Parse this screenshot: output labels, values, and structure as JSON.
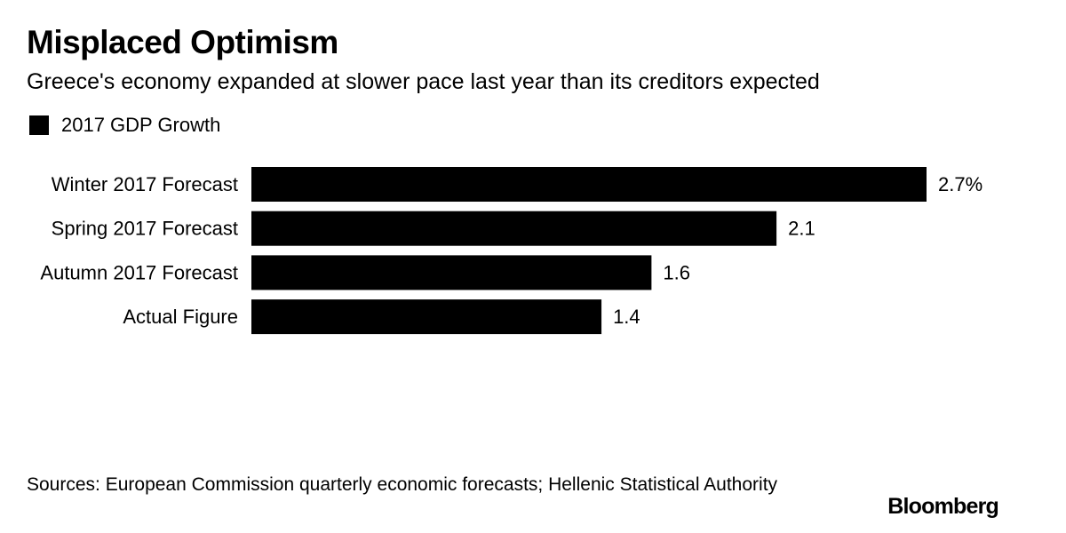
{
  "header": {
    "title": "Misplaced Optimism",
    "subtitle": "Greece's economy expanded at slower pace last year than its creditors expected"
  },
  "legend": {
    "label": "2017 GDP Growth",
    "color": "#000000"
  },
  "chart_data": {
    "type": "bar",
    "orientation": "horizontal",
    "title": "Misplaced Optimism",
    "subtitle": "Greece's economy expanded at slower pace last year than its creditors expected",
    "categories": [
      "Winter 2017 Forecast",
      "Spring 2017 Forecast",
      "Autumn 2017 Forecast",
      "Actual Figure"
    ],
    "series": [
      {
        "name": "2017 GDP Growth",
        "values": [
          2.7,
          2.1,
          1.6,
          1.4
        ],
        "value_labels": [
          "2.7%",
          "2.1",
          "1.6",
          "1.4"
        ],
        "color": "#000000"
      }
    ],
    "xlabel": "",
    "ylabel": "",
    "xlim": [
      0,
      2.7
    ],
    "grid": false,
    "legend_position": "top-left"
  },
  "footer": {
    "source": "Sources: European Commission quarterly economic forecasts; Hellenic Statistical Authority",
    "brand": "Bloomberg"
  }
}
